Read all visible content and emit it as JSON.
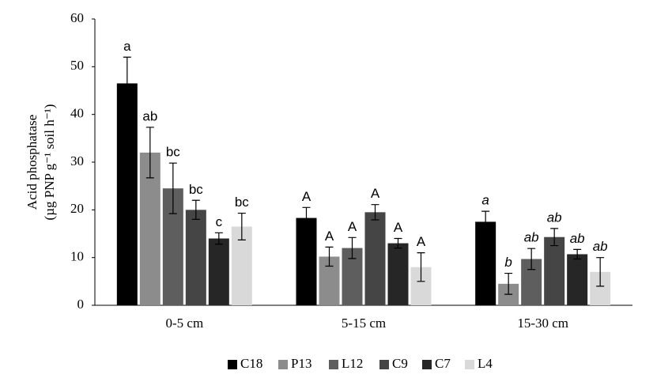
{
  "chart_data": {
    "type": "bar",
    "y_label": [
      "Acid phosphatase",
      "(µg PNP g⁻¹ soil h⁻¹)"
    ],
    "categories": [
      "0-5 cm",
      "5-15 cm",
      "15-30 cm"
    ],
    "ylim": [
      0,
      60
    ],
    "yticks": [
      0,
      10,
      20,
      30,
      40,
      50,
      60
    ],
    "grid": false,
    "legend": "bottom",
    "annotation_styles": [
      "normal",
      "normal",
      "italic"
    ],
    "series": [
      {
        "name": "C18",
        "color": "#000000",
        "values": [
          46.5,
          18.3,
          17.5
        ],
        "errors": [
          5.5,
          2.2,
          2.2
        ],
        "annotations": [
          "a",
          "A",
          "a"
        ]
      },
      {
        "name": "P13",
        "color": "#8c8c8c",
        "values": [
          32,
          10.2,
          4.5
        ],
        "errors": [
          5.3,
          2,
          2.2
        ],
        "annotations": [
          "ab",
          "A",
          "b"
        ]
      },
      {
        "name": "L12",
        "color": "#5e5e5e",
        "values": [
          24.5,
          12,
          9.7
        ],
        "errors": [
          5.3,
          2.2,
          2.2
        ],
        "annotations": [
          "bc",
          "A",
          "ab"
        ]
      },
      {
        "name": "C9",
        "color": "#454545",
        "values": [
          20,
          19.5,
          14.3
        ],
        "errors": [
          2,
          1.6,
          1.8
        ],
        "annotations": [
          "bc",
          "A",
          "ab"
        ]
      },
      {
        "name": "C7",
        "color": "#262626",
        "values": [
          14,
          13,
          10.7
        ],
        "errors": [
          1.2,
          1,
          1
        ],
        "annotations": [
          "c",
          "A",
          "ab"
        ]
      },
      {
        "name": "L4",
        "color": "#d9d9d9",
        "values": [
          16.5,
          8,
          7
        ],
        "errors": [
          2.8,
          3,
          3
        ],
        "annotations": [
          "bc",
          "A",
          "ab"
        ]
      }
    ]
  }
}
